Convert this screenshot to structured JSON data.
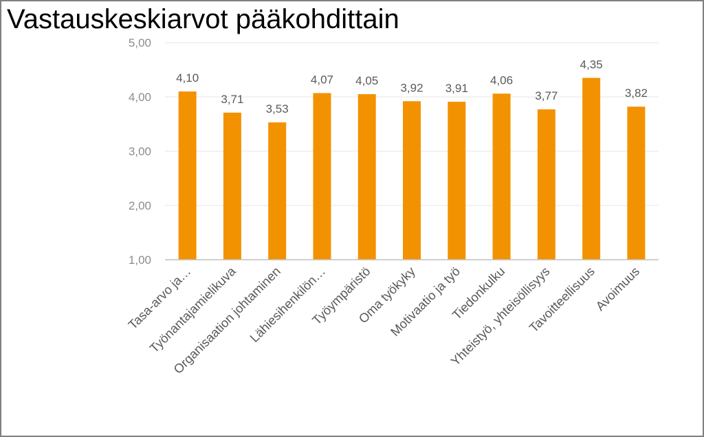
{
  "chart_data": {
    "type": "bar",
    "title": "Vastauskeskiarvot pääkohdittain",
    "categories": [
      "Tasa-arvo ja…",
      "Työnantajamielikuva",
      "Organisaation johtaminen",
      "Lähiesihenkilön…",
      "Työympäristö",
      "Oma työkyky",
      "Motivaatio ja työ",
      "Tiedonkulku",
      "Yhteistyö, yhteisöllisyys",
      "Tavoitteellisuus",
      "Avoimuus"
    ],
    "values": [
      4.1,
      3.71,
      3.53,
      4.07,
      4.05,
      3.92,
      3.91,
      4.06,
      3.77,
      4.35,
      3.82
    ],
    "value_labels": [
      "4,10",
      "3,71",
      "3,53",
      "4,07",
      "4,05",
      "3,92",
      "3,91",
      "4,06",
      "3,77",
      "4,35",
      "3,82"
    ],
    "ylim": [
      1,
      5
    ],
    "yticks": [
      1,
      2,
      3,
      4,
      5
    ],
    "ytick_labels": [
      "1,00",
      "2,00",
      "3,00",
      "4,00",
      "5,00"
    ],
    "xlabel": "",
    "ylabel": "",
    "grid": true,
    "bar_color": "#F39200"
  }
}
